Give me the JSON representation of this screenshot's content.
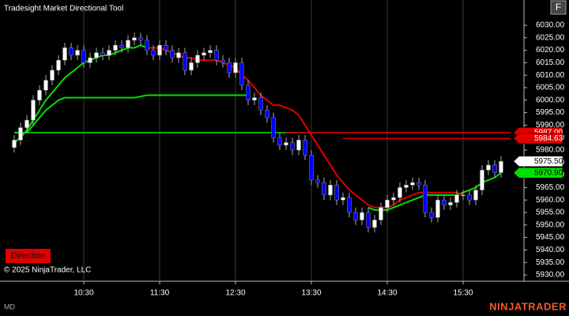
{
  "chart_data": {
    "type": "candlestick",
    "title": "Tradesight Market Directional Tool",
    "x": [
      "09:35",
      "09:40",
      "09:45",
      "09:50",
      "09:55",
      "10:00",
      "10:05",
      "10:10",
      "10:15",
      "10:20",
      "10:25",
      "10:30",
      "10:35",
      "10:40",
      "10:45",
      "10:50",
      "10:55",
      "11:00",
      "11:05",
      "11:10",
      "11:15",
      "11:20",
      "11:25",
      "11:30",
      "11:35",
      "11:40",
      "11:45",
      "11:50",
      "11:55",
      "12:00",
      "12:05",
      "12:10",
      "12:15",
      "12:20",
      "12:25",
      "12:30",
      "12:35",
      "12:40",
      "12:45",
      "12:50",
      "12:55",
      "13:00",
      "13:05",
      "13:10",
      "13:15",
      "13:20",
      "13:25",
      "13:30",
      "13:35",
      "13:40",
      "13:45",
      "13:50",
      "13:55",
      "14:00",
      "14:05",
      "14:10",
      "14:15",
      "14:20",
      "14:25",
      "14:30",
      "14:35",
      "14:40",
      "14:45",
      "14:50",
      "14:55",
      "15:00",
      "15:05",
      "15:10",
      "15:15",
      "15:20",
      "15:25",
      "15:30",
      "15:35",
      "15:40",
      "15:45",
      "15:50",
      "15:55",
      "16:00"
    ],
    "open": [
      5981,
      5984,
      5989,
      5992,
      6000,
      6004,
      6008,
      6012,
      6016,
      6021,
      6018,
      6020,
      6015,
      6017,
      6019,
      6018,
      6020,
      6022,
      6021,
      6024,
      6025,
      6024,
      6020,
      6018,
      6022,
      6020,
      6017,
      6019,
      6012,
      6015,
      6018,
      6019,
      6020,
      6016,
      6015,
      6011,
      6015,
      6006,
      6000,
      6001,
      5996,
      5993,
      5985,
      5982,
      5983,
      5980,
      5984,
      5978,
      5968,
      5967,
      5962,
      5966,
      5960,
      5961,
      5955,
      5952,
      5955,
      5949,
      5952,
      5957,
      5960,
      5961,
      5965,
      5966,
      5967,
      5966,
      5955,
      5953,
      5960,
      5958,
      5959,
      5962,
      5962,
      5960,
      5964,
      5972,
      5974,
      5971
    ],
    "high": [
      5986,
      5991,
      5994,
      6002,
      6006,
      6010,
      6014,
      6018,
      6023,
      6023,
      6022,
      6022,
      6019,
      6021,
      6021,
      6022,
      6024,
      6024,
      6026,
      6027,
      6027,
      6026,
      6022,
      6024,
      6024,
      6022,
      6021,
      6021,
      6017,
      6020,
      6021,
      6022,
      6022,
      6018,
      6017,
      6017,
      6017,
      6008,
      6003,
      6003,
      5998,
      5995,
      5987,
      5985,
      5985,
      5986,
      5986,
      5980,
      5970,
      5969,
      5968,
      5968,
      5963,
      5963,
      5957,
      5957,
      5957,
      5954,
      5959,
      5962,
      5963,
      5967,
      5968,
      5969,
      5969,
      5968,
      5957,
      5962,
      5962,
      5961,
      5964,
      5964,
      5964,
      5966,
      5974,
      5976,
      5976,
      5977.5
    ],
    "low": [
      5979,
      5982,
      5987,
      5990,
      5998,
      6002,
      6006,
      6010,
      6014,
      6016,
      6016,
      6013,
      6013,
      6015,
      6016,
      6016,
      6018,
      6019,
      6019,
      6022,
      6022,
      6018,
      6016,
      6016,
      6018,
      6015,
      6015,
      6010,
      6010,
      6013,
      6016,
      6017,
      6014,
      6013,
      6009,
      6009,
      6004,
      5998,
      5998,
      5994,
      5991,
      5983,
      5980,
      5980,
      5978,
      5978,
      5976,
      5966,
      5965,
      5960,
      5960,
      5958,
      5958,
      5953,
      5950,
      5950,
      5947,
      5947,
      5950,
      5955,
      5958,
      5959,
      5963,
      5964,
      5964,
      5953,
      5951,
      5951,
      5956,
      5956,
      5957,
      5960,
      5958,
      5958,
      5962,
      5970,
      5969,
      5969
    ],
    "close": [
      5984,
      5989,
      5992,
      6000,
      6004,
      6008,
      6012,
      6016,
      6021,
      6018,
      6020,
      6015,
      6017,
      6019,
      6018,
      6020,
      6022,
      6021,
      6024,
      6025,
      6024,
      6020,
      6018,
      6022,
      6020,
      6017,
      6019,
      6012,
      6015,
      6018,
      6019,
      6020,
      6016,
      6015,
      6011,
      6015,
      6006,
      6000,
      6001,
      5996,
      5993,
      5985,
      5982,
      5983,
      5980,
      5984,
      5978,
      5968,
      5967,
      5962,
      5966,
      5960,
      5961,
      5955,
      5952,
      5955,
      5949,
      5952,
      5957,
      5960,
      5961,
      5965,
      5966,
      5967,
      5966,
      5955,
      5953,
      5960,
      5958,
      5959,
      5962,
      5962,
      5960,
      5964,
      5972,
      5974,
      5971,
      5975.5
    ],
    "up_color": "#ffffff",
    "down_color": "#0000ff",
    "series": [
      {
        "color": "#00e000",
        "values": [
          5987,
          5987,
          5987,
          5990,
          5993,
          5996,
          5998,
          6000,
          6001,
          6001,
          6001,
          6001,
          6001,
          6001,
          6001,
          6001,
          6001,
          6001,
          6001,
          6001,
          6001.5,
          6002,
          6002,
          6002,
          6002,
          6002,
          6002,
          6002,
          6002,
          6002,
          6002,
          6002,
          6002,
          6002,
          6002,
          6002,
          6002,
          6002,
          null,
          null,
          null,
          null,
          null,
          null,
          null,
          null,
          null,
          null,
          null,
          null,
          null,
          null,
          null,
          null,
          null,
          null,
          null,
          null,
          null,
          null,
          null,
          null,
          null,
          null,
          null,
          null,
          null,
          null,
          null,
          null,
          null,
          null,
          null,
          null,
          null,
          null,
          null,
          null
        ]
      },
      {
        "color": "#00e000",
        "values": [
          5983,
          5985,
          5988,
          5992,
          5996,
          6000,
          6003,
          6006,
          6009,
          6011,
          6013,
          6015,
          6016,
          6017,
          6018,
          6018,
          6019,
          6020,
          6021,
          6021,
          6022,
          6021,
          null,
          null,
          null,
          null,
          null,
          null,
          null,
          null,
          null,
          null,
          null,
          null,
          null,
          null,
          null,
          null,
          null,
          null,
          null,
          null,
          null,
          null,
          null,
          null,
          null,
          null,
          null,
          null,
          null,
          null,
          null,
          null,
          null,
          null,
          5957,
          5956,
          5956,
          5956,
          5957,
          5958,
          5959,
          5960,
          5961,
          5962,
          5962,
          5962,
          5962,
          5962,
          5962,
          5963,
          5964,
          5965,
          5967,
          5968,
          5969,
          5970.9
        ]
      },
      {
        "color": "#e00000",
        "values": [
          null,
          null,
          null,
          null,
          null,
          null,
          null,
          null,
          null,
          null,
          null,
          null,
          null,
          null,
          null,
          null,
          null,
          null,
          null,
          null,
          null,
          6021,
          6021,
          6021,
          6020,
          6019,
          6018,
          6017,
          6017,
          6016,
          6016,
          6016,
          6016,
          6015,
          6014,
          6013,
          6010,
          6008,
          6005,
          6002,
          6000,
          5998,
          5998,
          5997,
          5996,
          5994,
          5990,
          5986,
          5982,
          5978,
          5974,
          5970,
          5967,
          5964,
          5962,
          5960,
          5958,
          5957,
          5957,
          5957,
          5958,
          5960,
          5961,
          5962,
          5963,
          5963,
          5963,
          5963,
          5963,
          5963,
          5963,
          5962,
          null,
          null,
          null,
          null,
          null,
          null
        ]
      }
    ],
    "levels": [
      {
        "value": 5987,
        "color": "#00e000",
        "start": "09:35",
        "end": "13:10"
      },
      {
        "value": 5987,
        "color": "#e00000",
        "start": "13:10",
        "end": "16:00"
      },
      {
        "value": 5984.63,
        "color": "#e00000",
        "start": "13:55",
        "end": "16:00"
      }
    ],
    "price_markers": [
      {
        "value": 5987,
        "label": "5987.00",
        "color": "#e00000",
        "text_color": "#ffffff"
      },
      {
        "value": 5984.63,
        "label": "5984.63",
        "color": "#e00000",
        "text_color": "#ffffff"
      },
      {
        "value": 5975.5,
        "label": "5975.50",
        "color": "#ffffff",
        "text_color": "#000000"
      },
      {
        "value": 5970.9,
        "label": "5970.90",
        "color": "#00e000",
        "text_color": "#000000"
      }
    ],
    "ylim": [
      5927.78,
      6040.13
    ],
    "yticks": [
      {
        "value": 5930,
        "label": "5930.00"
      },
      {
        "value": 5935,
        "label": "5935.00"
      },
      {
        "value": 5940,
        "label": "5940.00"
      },
      {
        "value": 5945,
        "label": "5945.00"
      },
      {
        "value": 5950,
        "label": "5950.00"
      },
      {
        "value": 5955,
        "label": "5955.00"
      },
      {
        "value": 5960,
        "label": "5960.00"
      },
      {
        "value": 5965,
        "label": "5965.00"
      },
      {
        "value": 5970,
        "label": "5970.00"
      },
      {
        "value": 5975,
        "label": "5975.00"
      },
      {
        "value": 5980,
        "label": "5980.00"
      },
      {
        "value": 5985,
        "label": "5985.00"
      },
      {
        "value": 5990,
        "label": "5990.00"
      },
      {
        "value": 5995,
        "label": "5995.00"
      },
      {
        "value": 6000,
        "label": "6000.00"
      },
      {
        "value": 6005,
        "label": "6005.00"
      },
      {
        "value": 6010,
        "label": "6010.00"
      },
      {
        "value": 6015,
        "label": "6015.00"
      },
      {
        "value": 6020,
        "label": "6020.00"
      },
      {
        "value": 6025,
        "label": "6025.00"
      },
      {
        "value": 6030,
        "label": "6030.00"
      }
    ],
    "xticks": [
      "10:30",
      "11:30",
      "12:30",
      "13:30",
      "14:30",
      "15:30"
    ],
    "grid": true
  },
  "ui": {
    "button": "Direction",
    "copyright": "© 2025 NinjaTrader, LLC",
    "panel_label": "MD",
    "brand": "NINJATRADER",
    "corner_button": "F"
  }
}
